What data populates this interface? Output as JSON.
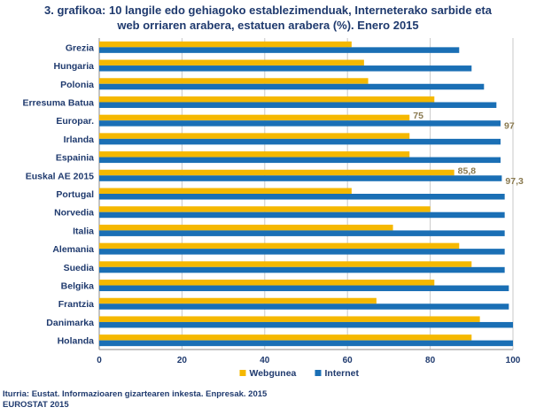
{
  "title_line1": "3. grafikoa: 10 langile edo gehiagoko establezimenduak, Interneterako sarbide eta",
  "title_line2": "web orriaren arabera, estatuen arabera (%). Enero 2015",
  "source_line1": "Iturria: Eustat. Informazioaren gizartearen inkesta. Enpresak. 2015",
  "source_line2": "EUROSTAT 2015",
  "chart_data": {
    "type": "bar",
    "orientation": "horizontal",
    "categories": [
      "Grezia",
      "Hungaria",
      "Polonia",
      "Erresuma Batua",
      "Europar.",
      "Irlanda",
      "Espainia",
      "Euskal AE 2015",
      "Portugal",
      "Norvedia",
      "Italia",
      "Alemania",
      "Suedia",
      "Belgika",
      "Frantzia",
      "Danimarka",
      "Holanda"
    ],
    "series": [
      {
        "name": "Webgunea",
        "color": "#f5b800",
        "values": [
          61,
          64,
          65,
          81,
          75,
          75,
          75,
          85.8,
          61,
          80,
          71,
          87,
          90,
          81,
          67,
          92,
          90
        ]
      },
      {
        "name": "Internet",
        "color": "#1a6fb5",
        "values": [
          87,
          90,
          93,
          96,
          97,
          97,
          97,
          97.3,
          98,
          98,
          98,
          98,
          98,
          99,
          99,
          100,
          100
        ]
      }
    ],
    "data_labels": [
      {
        "category": "Europar.",
        "series": "Webgunea",
        "text": "75"
      },
      {
        "category": "Europar.",
        "series": "Internet",
        "text": "97"
      },
      {
        "category": "Euskal AE 2015",
        "series": "Webgunea",
        "text": "85,8"
      },
      {
        "category": "Euskal AE 2015",
        "series": "Internet",
        "text": "97,3"
      }
    ],
    "xlim": [
      0,
      100
    ],
    "xticks": [
      0,
      20,
      40,
      60,
      80,
      100
    ],
    "grid": true,
    "legend": "bottom-center"
  }
}
